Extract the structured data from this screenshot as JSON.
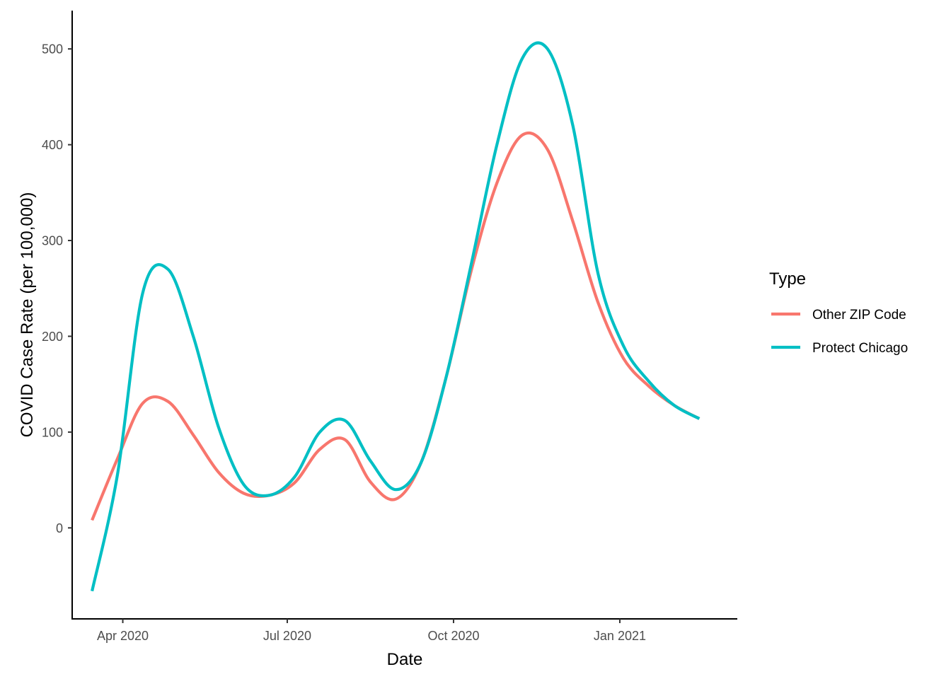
{
  "chart_data": {
    "type": "line",
    "title": "",
    "xlabel": "Date",
    "ylabel": "COVID Case Rate (per 100,000)",
    "x_type": "date",
    "xlim": [
      "2020-03-04",
      "2021-03-07"
    ],
    "ylim": [
      -95,
      540
    ],
    "x_ticks": [
      {
        "value": "2020-04-01",
        "label": "Apr 2020"
      },
      {
        "value": "2020-07-01",
        "label": "Jul 2020"
      },
      {
        "value": "2020-10-01",
        "label": "Oct 2020"
      },
      {
        "value": "2021-01-01",
        "label": "Jan 2021"
      }
    ],
    "y_ticks": [
      {
        "value": 0,
        "label": "0"
      },
      {
        "value": 100,
        "label": "100"
      },
      {
        "value": 200,
        "label": "200"
      },
      {
        "value": 300,
        "label": "300"
      },
      {
        "value": 400,
        "label": "400"
      },
      {
        "value": 500,
        "label": "500"
      }
    ],
    "grid": false,
    "legend": {
      "title": "Type",
      "position": "right",
      "items": [
        {
          "label": "Other ZIP Code",
          "color": "#F8766D"
        },
        {
          "label": "Protect Chicago",
          "color": "#00BFC4"
        }
      ]
    },
    "x": [
      "2020-03-15",
      "2020-03-29",
      "2020-04-12",
      "2020-04-26",
      "2020-05-10",
      "2020-05-24",
      "2020-06-07",
      "2020-06-21",
      "2020-07-05",
      "2020-07-19",
      "2020-08-02",
      "2020-08-16",
      "2020-08-30",
      "2020-09-13",
      "2020-09-27",
      "2020-10-11",
      "2020-10-25",
      "2020-11-08",
      "2020-11-22",
      "2020-12-06",
      "2020-12-20",
      "2021-01-03",
      "2021-01-17",
      "2021-01-31",
      "2021-02-14"
    ],
    "series": [
      {
        "name": "Other ZIP Code",
        "color": "#F8766D",
        "values": [
          8,
          72,
          130,
          132,
          97,
          58,
          36,
          34,
          47,
          82,
          92,
          48,
          30,
          68,
          158,
          270,
          360,
          410,
          395,
          320,
          235,
          177,
          148,
          128,
          114
        ]
      },
      {
        "name": "Protect Chicago",
        "color": "#00BFC4",
        "values": [
          -66,
          55,
          245,
          270,
          200,
          105,
          45,
          34,
          53,
          100,
          112,
          70,
          40,
          68,
          158,
          277,
          400,
          490,
          500,
          420,
          265,
          190,
          153,
          128,
          114
        ]
      }
    ]
  }
}
